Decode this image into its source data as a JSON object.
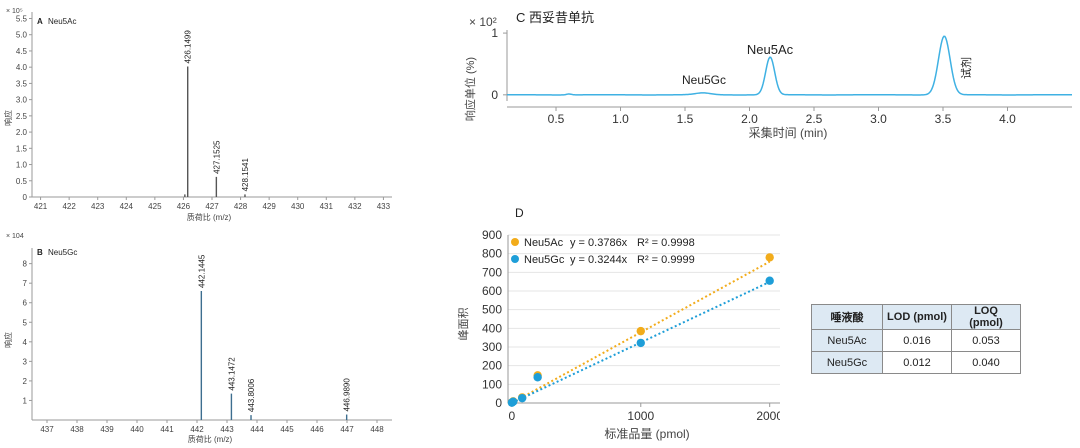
{
  "panel_a": {
    "letter": "A",
    "name": "Neu5Ac",
    "exponent": "× 10⁵",
    "ylabel": "响应",
    "xlabel": "质荷比 (m/z)"
  },
  "panel_b": {
    "letter": "B",
    "name": "Neu5Gc",
    "exponent": "× 104",
    "ylabel": "响应",
    "xlabel": "质荷比 (m/z)"
  },
  "panel_c": {
    "title": "C 西妥昔单抗",
    "exponent": "× 10²",
    "ylabel": "响应单位 (%)",
    "xlabel": "采集时间 (min)",
    "peak_labels": [
      "Neu5Gc",
      "Neu5Ac",
      "试剂"
    ]
  },
  "panel_d": {
    "letter": "D",
    "ylabel": "峰面积",
    "xlabel": "标准品量 (pmol)"
  },
  "lod_table": {
    "headers": [
      "唾液酸",
      "LOD (pmol)",
      "LOQ (pmol)"
    ],
    "rows": [
      [
        "Neu5Ac",
        "0.016",
        "0.053"
      ],
      [
        "Neu5Gc",
        "0.012",
        "0.040"
      ]
    ]
  },
  "colors": {
    "ms_a": "#555555",
    "ms_b": "#3d6e8f",
    "chromatogram": "#3fb1e3",
    "neu5ac": "#f2ac1b",
    "neu5gc": "#1e9ed8"
  },
  "chart_data": [
    {
      "type": "bar",
      "title": "Neu5Ac",
      "xlabel": "质荷比 (m/z)",
      "ylabel": "响应",
      "x_ticks": [
        421,
        422,
        423,
        424,
        425,
        426,
        427,
        428,
        429,
        430,
        431,
        432,
        433
      ],
      "y_ticks": [
        0,
        0.5,
        1.0,
        1.5,
        2.0,
        2.5,
        3.0,
        3.5,
        4.0,
        4.5,
        5.0,
        5.5
      ],
      "y_tick_labels": [
        "0",
        "0.5",
        "1.0",
        "1.5",
        "2.0",
        "2.5",
        "3.0",
        "3.5",
        "4.0",
        "4.5",
        "5.0",
        "5.5"
      ],
      "xlim": [
        420.7,
        433.3
      ],
      "ylim": [
        0,
        5.7
      ],
      "peaks": [
        {
          "mz": 426.1499,
          "value": 4.02,
          "label": "426.1499"
        },
        {
          "mz": 427.1525,
          "value": 0.62,
          "label": "427.1525"
        },
        {
          "mz": 428.1541,
          "value": 0.08,
          "label": "428.1541"
        },
        {
          "mz": 426.05,
          "value": 0.08
        }
      ]
    },
    {
      "type": "bar",
      "title": "Neu5Gc",
      "xlabel": "质荷比 (m/z)",
      "ylabel": "响应",
      "x_ticks": [
        437,
        438,
        439,
        440,
        441,
        442,
        443,
        444,
        445,
        446,
        447,
        448
      ],
      "y_ticks": [
        1,
        2,
        3,
        4,
        5,
        6,
        7,
        8
      ],
      "y_tick_labels": [
        "1",
        "2",
        "3",
        "4",
        "5",
        "6",
        "7",
        "8"
      ],
      "xlim": [
        436.5,
        448.5
      ],
      "ylim": [
        0,
        8.8
      ],
      "peaks": [
        {
          "mz": 442.1445,
          "value": 6.6,
          "label": "442.1445"
        },
        {
          "mz": 443.1472,
          "value": 1.35,
          "label": "443.1472"
        },
        {
          "mz": 443.8006,
          "value": 0.25,
          "label": "443.8006"
        },
        {
          "mz": 446.989,
          "value": 0.28,
          "label": "446.9890"
        }
      ]
    },
    {
      "type": "line",
      "title": "C 西妥昔单抗",
      "xlabel": "采集时间 (min)",
      "ylabel": "响应单位 (%)",
      "x_ticks": [
        0.5,
        1.0,
        1.5,
        2.0,
        2.5,
        3.0,
        3.5,
        4.0
      ],
      "x_tick_labels": [
        "0.5",
        "1.0",
        "1.5",
        "2.0",
        "2.5",
        "3.0",
        "3.5",
        "4.0"
      ],
      "y_ticks": [
        0,
        1
      ],
      "y_tick_labels": [
        "0",
        "1"
      ],
      "xlim": [
        0.12,
        4.5
      ],
      "ylim": [
        -0.1,
        1.05
      ],
      "peaks": [
        {
          "rt": 0.6,
          "height": 0.015,
          "width": 0.02
        },
        {
          "rt": 1.64,
          "height": 0.03,
          "width": 0.06,
          "label": "Neu5Gc"
        },
        {
          "rt": 2.16,
          "height": 0.61,
          "width": 0.035,
          "label": "Neu5Ac"
        },
        {
          "rt": 3.51,
          "height": 0.95,
          "width": 0.045,
          "label": "试剂"
        }
      ]
    },
    {
      "type": "scatter",
      "title": "",
      "xlabel": "标准品量 (pmol)",
      "ylabel": "峰面积",
      "x_ticks": [
        0,
        1000,
        2000
      ],
      "y_ticks": [
        0,
        100,
        200,
        300,
        400,
        500,
        600,
        700,
        800,
        900
      ],
      "xlim": [
        -30,
        2080
      ],
      "ylim": [
        0,
        900
      ],
      "grid": true,
      "legend": "top-left",
      "series": [
        {
          "name": "Neu5Ac",
          "equation": "y = 0.3786x",
          "r2": "R² = 0.9998",
          "slope": 0.3786,
          "x": [
            0,
            10,
            80,
            200,
            1000,
            2000
          ],
          "y": [
            3,
            9,
            30,
            148,
            385,
            780
          ]
        },
        {
          "name": "Neu5Gc",
          "equation": "y = 0.3244x",
          "r2": "R² = 0.9999",
          "slope": 0.3244,
          "x": [
            0,
            10,
            80,
            200,
            1000,
            2000
          ],
          "y": [
            2,
            7,
            26,
            138,
            322,
            655
          ]
        }
      ]
    }
  ]
}
